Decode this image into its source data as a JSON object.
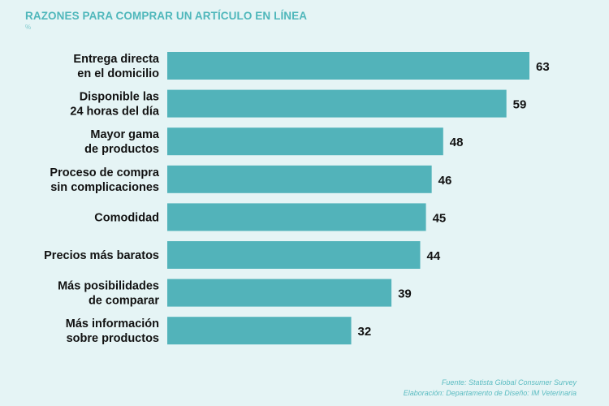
{
  "chart_data": {
    "type": "bar",
    "orientation": "horizontal",
    "title": "RAZONES PARA COMPRAR UN ARTÍCULO EN LÍNEA",
    "subtitle": "%",
    "categories": [
      [
        "Entrega directa",
        "en el domicilio"
      ],
      [
        "Disponible las",
        "24 horas del día"
      ],
      [
        "Mayor gama",
        "de productos"
      ],
      [
        "Proceso de compra",
        "sin complicaciones"
      ],
      [
        "Comodidad"
      ],
      [
        "Precios más baratos"
      ],
      [
        "Más posibilidades",
        "de comparar"
      ],
      [
        "Más información",
        "sobre productos"
      ]
    ],
    "values": [
      63,
      59,
      48,
      46,
      45,
      44,
      39,
      32
    ],
    "xlim": [
      0,
      63
    ],
    "grid": false,
    "bar_color": "#52b3ba"
  },
  "source": {
    "line1": "Fuente: Statista Global Consumer Survey",
    "line2": "Elaboración: Departamento de Diseño: IM Veterinaria"
  }
}
